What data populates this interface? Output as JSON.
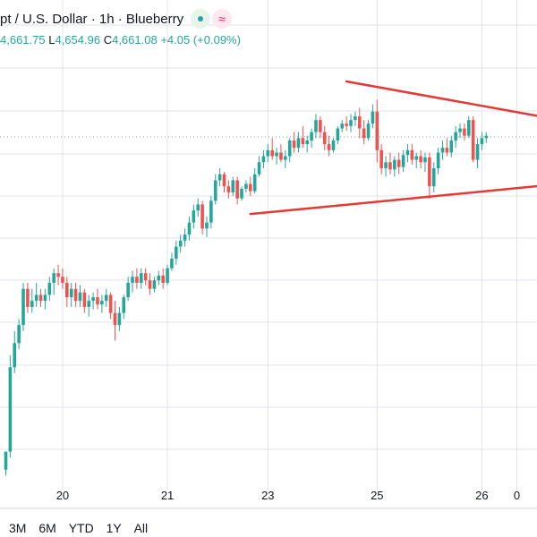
{
  "header": {
    "title": "pt / U.S. Dollar · 1h · Blueberry",
    "wave_glyph": "≈"
  },
  "ohlc": {
    "open_value": "4,661.75",
    "low_label": "L",
    "low_value": "4,654.96",
    "close_label": "C",
    "close_value": "4,661.08",
    "change": "+4.05 (+0.09%)"
  },
  "colors": {
    "up": "#26a69a",
    "down": "#ef5350",
    "trendline": "#e53935",
    "grid": "#e0e3eb"
  },
  "range_buttons": [
    "3M",
    "6M",
    "YTD",
    "1Y",
    "All"
  ],
  "chart_data": {
    "type": "candlestick",
    "x_tick_labels": [
      {
        "label": "20",
        "index": 13
      },
      {
        "label": "21",
        "index": 37
      },
      {
        "label": "23",
        "index": 60
      },
      {
        "label": "25",
        "index": 85
      },
      {
        "label": "26",
        "index": 109
      },
      {
        "label": "0",
        "index": 117
      }
    ],
    "candles": [
      [
        4405,
        4420,
        4400,
        4420
      ],
      [
        4420,
        4500,
        4415,
        4490
      ],
      [
        4490,
        4520,
        4485,
        4510
      ],
      [
        4510,
        4530,
        4505,
        4525
      ],
      [
        4525,
        4560,
        4520,
        4555
      ],
      [
        4555,
        4560,
        4535,
        4540
      ],
      [
        4540,
        4555,
        4535,
        4545
      ],
      [
        4545,
        4560,
        4540,
        4550
      ],
      [
        4550,
        4555,
        4540,
        4545
      ],
      [
        4545,
        4555,
        4538,
        4550
      ],
      [
        4550,
        4565,
        4545,
        4560
      ],
      [
        4560,
        4572,
        4550,
        4568
      ],
      [
        4568,
        4575,
        4558,
        4565
      ],
      [
        4565,
        4572,
        4555,
        4560
      ],
      [
        4560,
        4565,
        4540,
        4548
      ],
      [
        4548,
        4560,
        4540,
        4555
      ],
      [
        4555,
        4560,
        4540,
        4545
      ],
      [
        4545,
        4558,
        4540,
        4552
      ],
      [
        4552,
        4555,
        4535,
        4540
      ],
      [
        4540,
        4550,
        4532,
        4545
      ],
      [
        4545,
        4552,
        4538,
        4548
      ],
      [
        4548,
        4555,
        4538,
        4542
      ],
      [
        4542,
        4550,
        4535,
        4545
      ],
      [
        4545,
        4555,
        4540,
        4550
      ],
      [
        4550,
        4552,
        4530,
        4535
      ],
      [
        4535,
        4545,
        4512,
        4525
      ],
      [
        4525,
        4540,
        4520,
        4535
      ],
      [
        4535,
        4550,
        4530,
        4548
      ],
      [
        4548,
        4565,
        4545,
        4560
      ],
      [
        4560,
        4570,
        4552,
        4565
      ],
      [
        4565,
        4572,
        4555,
        4560
      ],
      [
        4560,
        4572,
        4555,
        4568
      ],
      [
        4568,
        4572,
        4558,
        4562
      ],
      [
        4562,
        4568,
        4550,
        4555
      ],
      [
        4555,
        4565,
        4552,
        4562
      ],
      [
        4562,
        4570,
        4558,
        4566
      ],
      [
        4566,
        4572,
        4555,
        4560
      ],
      [
        4560,
        4575,
        4558,
        4572
      ],
      [
        4572,
        4585,
        4570,
        4580
      ],
      [
        4580,
        4595,
        4575,
        4590
      ],
      [
        4590,
        4600,
        4585,
        4595
      ],
      [
        4595,
        4605,
        4590,
        4600
      ],
      [
        4600,
        4615,
        4595,
        4610
      ],
      [
        4610,
        4625,
        4605,
        4620
      ],
      [
        4620,
        4630,
        4615,
        4625
      ],
      [
        4625,
        4628,
        4600,
        4605
      ],
      [
        4605,
        4615,
        4598,
        4610
      ],
      [
        4610,
        4632,
        4605,
        4628
      ],
      [
        4628,
        4650,
        4625,
        4645
      ],
      [
        4645,
        4655,
        4640,
        4650
      ],
      [
        4650,
        4652,
        4635,
        4640
      ],
      [
        4640,
        4645,
        4630,
        4635
      ],
      [
        4635,
        4648,
        4632,
        4645
      ],
      [
        4645,
        4648,
        4625,
        4630
      ],
      [
        4630,
        4640,
        4628,
        4638
      ],
      [
        4638,
        4645,
        4635,
        4642
      ],
      [
        4642,
        4648,
        4632,
        4636
      ],
      [
        4636,
        4655,
        4634,
        4650
      ],
      [
        4650,
        4665,
        4648,
        4660
      ],
      [
        4660,
        4670,
        4655,
        4665
      ],
      [
        4665,
        4675,
        4660,
        4670
      ],
      [
        4670,
        4680,
        4662,
        4665
      ],
      [
        4665,
        4672,
        4658,
        4668
      ],
      [
        4668,
        4675,
        4660,
        4662
      ],
      [
        4662,
        4670,
        4655,
        4665
      ],
      [
        4665,
        4680,
        4660,
        4678
      ],
      [
        4678,
        4685,
        4668,
        4672
      ],
      [
        4672,
        4685,
        4668,
        4680
      ],
      [
        4680,
        4690,
        4672,
        4675
      ],
      [
        4675,
        4682,
        4668,
        4678
      ],
      [
        4678,
        4688,
        4672,
        4685
      ],
      [
        4685,
        4700,
        4680,
        4695
      ],
      [
        4695,
        4698,
        4680,
        4685
      ],
      [
        4685,
        4690,
        4670,
        4675
      ],
      [
        4675,
        4682,
        4665,
        4670
      ],
      [
        4670,
        4680,
        4668,
        4678
      ],
      [
        4678,
        4690,
        4675,
        4688
      ],
      [
        4688,
        4695,
        4685,
        4692
      ],
      [
        4692,
        4698,
        4686,
        4690
      ],
      [
        4690,
        4700,
        4685,
        4695
      ],
      [
        4695,
        4702,
        4690,
        4698
      ],
      [
        4698,
        4705,
        4680,
        4688
      ],
      [
        4688,
        4695,
        4675,
        4680
      ],
      [
        4680,
        4695,
        4678,
        4692
      ],
      [
        4692,
        4708,
        4688,
        4702
      ],
      [
        4702,
        4712,
        4660,
        4670
      ],
      [
        4670,
        4675,
        4650,
        4655
      ],
      [
        4655,
        4665,
        4648,
        4660
      ],
      [
        4660,
        4668,
        4650,
        4654
      ],
      [
        4654,
        4665,
        4648,
        4662
      ],
      [
        4662,
        4668,
        4650,
        4656
      ],
      [
        4656,
        4670,
        4652,
        4666
      ],
      [
        4666,
        4675,
        4660,
        4670
      ],
      [
        4670,
        4675,
        4658,
        4662
      ],
      [
        4662,
        4668,
        4655,
        4665
      ],
      [
        4665,
        4670,
        4655,
        4660
      ],
      [
        4660,
        4668,
        4652,
        4664
      ],
      [
        4664,
        4668,
        4630,
        4640
      ],
      [
        4640,
        4660,
        4635,
        4655
      ],
      [
        4655,
        4672,
        4650,
        4668
      ],
      [
        4668,
        4678,
        4662,
        4672
      ],
      [
        4672,
        4680,
        4665,
        4668
      ],
      [
        4668,
        4682,
        4664,
        4678
      ],
      [
        4678,
        4690,
        4672,
        4685
      ],
      [
        4685,
        4692,
        4680,
        4688
      ],
      [
        4688,
        4692,
        4678,
        4682
      ],
      [
        4682,
        4698,
        4680,
        4695
      ],
      [
        4695,
        4698,
        4660,
        4662
      ],
      [
        4662,
        4680,
        4655,
        4675
      ],
      [
        4675,
        4685,
        4670,
        4680
      ],
      [
        4680,
        4685,
        4676,
        4682
      ]
    ],
    "trendlines": [
      {
        "start_index": 78,
        "start_price": 4727,
        "end_index": 127,
        "end_price": 4695
      },
      {
        "start_index": 56,
        "start_price": 4617,
        "end_index": 127,
        "end_price": 4642
      }
    ],
    "last_price": 4681,
    "ylim": [
      4390,
      4750
    ]
  }
}
